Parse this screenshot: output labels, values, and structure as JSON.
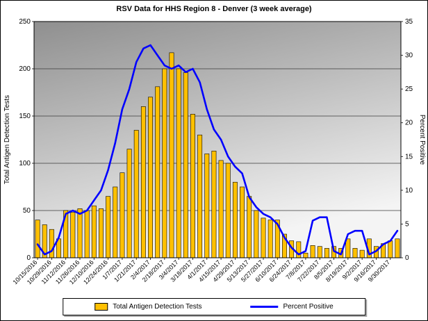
{
  "chart_data": {
    "type": "combo-bar-line",
    "title": "RSV Data for HHS Region 8 - Denver (3 week average)",
    "grid": true,
    "legend_position": "bottom",
    "plot_bg_gradient": [
      "#8f8f8f",
      "#f4f4f4"
    ],
    "categories": [
      "10/15/2016",
      "10/22/2016",
      "10/29/2016",
      "11/5/2016",
      "11/12/2016",
      "11/19/2016",
      "11/26/2016",
      "12/3/2016",
      "12/10/2016",
      "12/17/2016",
      "12/24/2016",
      "12/31/2016",
      "1/7/2017",
      "1/14/2017",
      "1/21/2017",
      "1/28/2017",
      "2/4/2017",
      "2/11/2017",
      "2/18/2017",
      "2/25/2017",
      "3/4/2017",
      "3/11/2017",
      "3/18/2017",
      "3/25/2017",
      "4/1/2017",
      "4/8/2017",
      "4/15/2017",
      "4/22/2017",
      "4/29/2017",
      "5/6/2017",
      "5/13/2017",
      "5/20/2017",
      "5/27/2017",
      "6/3/2017",
      "6/10/2017",
      "6/17/2017",
      "6/24/2017",
      "7/1/2017",
      "7/8/2017",
      "7/15/2017",
      "7/22/2017",
      "7/29/2017",
      "8/5/2017",
      "8/12/2017",
      "8/19/2017",
      "8/26/2017",
      "9/2/2017",
      "9/9/2017",
      "9/16/2017",
      "9/23/2017",
      "9/30/2017",
      "10/7/2017"
    ],
    "x_label_every": 2,
    "series": [
      {
        "name": "Total Antigen Detection Tests",
        "type": "bar",
        "axis": "left",
        "color": "#FFC000",
        "values": [
          40,
          35,
          30,
          20,
          50,
          48,
          52,
          50,
          55,
          52,
          65,
          75,
          90,
          115,
          135,
          160,
          170,
          181,
          200,
          217,
          200,
          196,
          152,
          130,
          110,
          113,
          103,
          100,
          80,
          75,
          65,
          50,
          42,
          40,
          40,
          25,
          18,
          17,
          5,
          13,
          12,
          10,
          12,
          10,
          20,
          10,
          8,
          20,
          12,
          15,
          18,
          20
        ]
      },
      {
        "name": "Percent Positive",
        "type": "line",
        "axis": "right",
        "color": "#0000FF",
        "values": [
          2,
          0.5,
          1,
          3,
          6.5,
          7,
          6.5,
          7,
          8.5,
          10,
          13,
          17,
          22,
          25,
          29,
          31,
          31.5,
          30,
          28.5,
          28,
          28.5,
          27.5,
          28,
          26,
          22,
          19,
          17.5,
          15,
          13.5,
          12.5,
          9,
          7.5,
          6.5,
          6,
          5,
          3,
          1.5,
          0.5,
          1,
          5.5,
          6,
          6,
          1,
          0.5,
          3.5,
          4,
          4,
          0.5,
          1,
          2,
          2.5,
          4
        ]
      }
    ],
    "left_axis": {
      "title": "Total Antigen Detection Tests",
      "min": 0,
      "max": 250,
      "step": 50
    },
    "right_axis": {
      "title": "Percent Positive",
      "min": 0,
      "max": 35,
      "step": 5
    }
  }
}
